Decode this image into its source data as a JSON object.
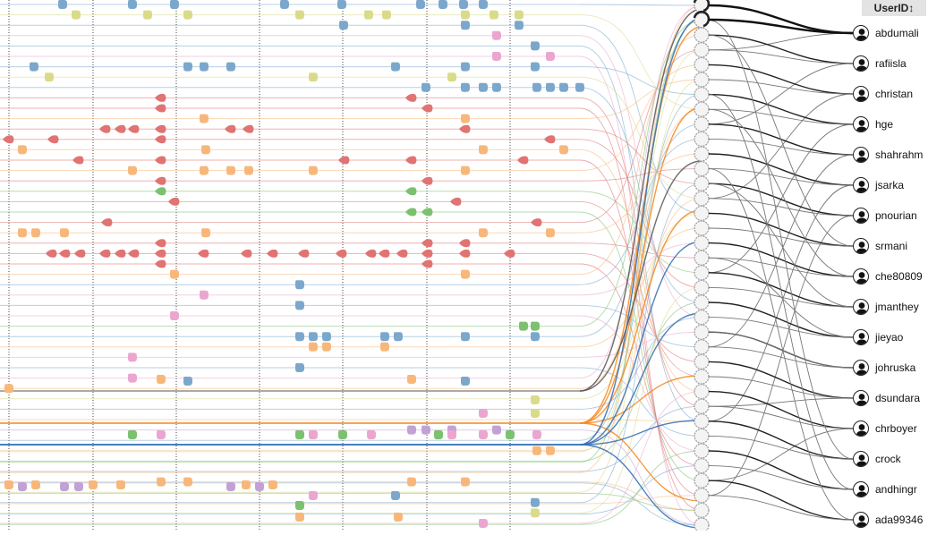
{
  "header": {
    "userid_label": "UserID",
    "sort_glyph": "↕"
  },
  "users": [
    "abdumali",
    "rafiisla",
    "christan",
    "hge",
    "shahrahm",
    "jsarka",
    "pnourian",
    "srmani",
    "che80809",
    "jmanthey",
    "jieyao",
    "johruska",
    "dsundara",
    "chrboyer",
    "crock",
    "andhingr",
    "ada99346"
  ],
  "colors": {
    "blue": "#7ba7cc",
    "olive": "#d9db8a",
    "pink": "#eba6cf",
    "orange": "#f8b77a",
    "red": "#e17373",
    "green": "#7bc16f",
    "purple": "#c2a2d6",
    "highlight_orange": "#f4871f",
    "highlight_blue": "#2f6db3",
    "dark_line": "#555555"
  },
  "icons": {
    "user_avatar": "person-silhouette-icon",
    "session_node": "ring-node-icon"
  }
}
